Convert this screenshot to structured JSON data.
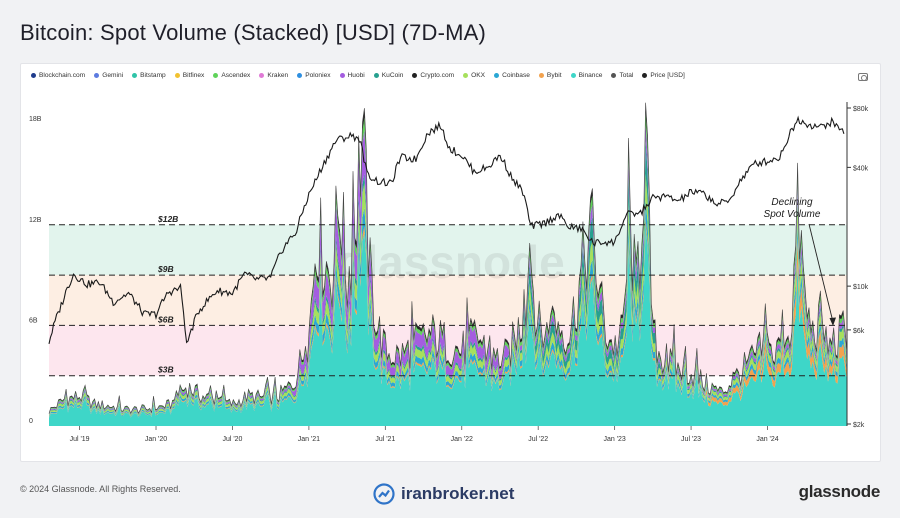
{
  "title": "Bitcoin: Spot Volume (Stacked) [USD] (7D-MA)",
  "footer": {
    "copyright": "© 2024 Glassnode. All Rights Reserved.",
    "site": "iranbroker.net",
    "brand": "glassnode"
  },
  "chart_data": {
    "type": "area",
    "watermark": "glassnode",
    "legend": [
      {
        "name": "Blockchain.com",
        "color": "#1f3b8c"
      },
      {
        "name": "Gemini",
        "color": "#5c7be0"
      },
      {
        "name": "Bitstamp",
        "color": "#2fc4a8"
      },
      {
        "name": "Bitfinex",
        "color": "#f2c230"
      },
      {
        "name": "Ascendex",
        "color": "#5fd35a"
      },
      {
        "name": "Kraken",
        "color": "#e07ad6"
      },
      {
        "name": "Poloniex",
        "color": "#2e8fe0"
      },
      {
        "name": "Huobi",
        "color": "#a45de0"
      },
      {
        "name": "KuCoin",
        "color": "#27a08f"
      },
      {
        "name": "Crypto.com",
        "color": "#222222"
      },
      {
        "name": "OKX",
        "color": "#a6e05c"
      },
      {
        "name": "Coinbase",
        "color": "#2aa7d4"
      },
      {
        "name": "Bybit",
        "color": "#f2a24e"
      },
      {
        "name": "Binance",
        "color": "#3ed6c8"
      },
      {
        "name": "Total",
        "color": "#555555"
      },
      {
        "name": "Price [USD]",
        "color": "#222222"
      }
    ],
    "x_ticks": [
      "Jul '19",
      "Jan '20",
      "Jul '20",
      "Jan '21",
      "Jul '21",
      "Jan '22",
      "Jul '22",
      "Jan '23",
      "Jul '23",
      "Jan '24"
    ],
    "y_left": {
      "ticks": [
        "0",
        "6B",
        "12B",
        "18B"
      ],
      "values": [
        0,
        6,
        12,
        18
      ],
      "unit": "B"
    },
    "y_right": {
      "ticks": [
        "$2k",
        "$6k",
        "$10k",
        "$40k",
        "$80k"
      ],
      "values": [
        2,
        6,
        10,
        40,
        80
      ],
      "scale": "log"
    },
    "bands": [
      {
        "from": 9,
        "to": 12,
        "color": "#e2f4ed"
      },
      {
        "from": 6,
        "to": 9,
        "color": "#fdeee3"
      },
      {
        "from": 3,
        "to": 6,
        "color": "#fde6ee"
      }
    ],
    "levels": [
      {
        "value": 12,
        "label": "$12B"
      },
      {
        "value": 9,
        "label": "$9B"
      },
      {
        "value": 6,
        "label": "$6B"
      },
      {
        "value": 3,
        "label": "$3B"
      }
    ],
    "annotation": {
      "lines": [
        "Declining",
        "Spot Volume"
      ]
    },
    "price": [
      [
        2019.3,
        5.2
      ],
      [
        2019.38,
        8.0
      ],
      [
        2019.46,
        11.5
      ],
      [
        2019.55,
        10.2
      ],
      [
        2019.63,
        10.5
      ],
      [
        2019.72,
        8.3
      ],
      [
        2019.82,
        9.2
      ],
      [
        2019.92,
        7.2
      ],
      [
        2020.0,
        7.2
      ],
      [
        2020.08,
        9.3
      ],
      [
        2020.16,
        9.8
      ],
      [
        2020.2,
        5.0
      ],
      [
        2020.28,
        7.5
      ],
      [
        2020.4,
        9.5
      ],
      [
        2020.5,
        9.2
      ],
      [
        2020.58,
        11.5
      ],
      [
        2020.66,
        10.8
      ],
      [
        2020.75,
        11.0
      ],
      [
        2020.83,
        15.5
      ],
      [
        2020.92,
        19.0
      ],
      [
        2021.0,
        29.0
      ],
      [
        2021.05,
        35.0
      ],
      [
        2021.12,
        45.0
      ],
      [
        2021.18,
        55.0
      ],
      [
        2021.28,
        58.0
      ],
      [
        2021.33,
        56.0
      ],
      [
        2021.38,
        37.0
      ],
      [
        2021.45,
        34.0
      ],
      [
        2021.54,
        33.0
      ],
      [
        2021.6,
        45.0
      ],
      [
        2021.7,
        44.0
      ],
      [
        2021.78,
        60.0
      ],
      [
        2021.86,
        65.0
      ],
      [
        2021.92,
        50.0
      ],
      [
        2022.0,
        46.0
      ],
      [
        2022.08,
        38.0
      ],
      [
        2022.17,
        40.0
      ],
      [
        2022.25,
        46.0
      ],
      [
        2022.33,
        35.0
      ],
      [
        2022.4,
        30.0
      ],
      [
        2022.45,
        20.0
      ],
      [
        2022.55,
        21.0
      ],
      [
        2022.63,
        23.0
      ],
      [
        2022.7,
        20.0
      ],
      [
        2022.78,
        19.5
      ],
      [
        2022.86,
        16.5
      ],
      [
        2022.95,
        16.8
      ],
      [
        2023.0,
        16.6
      ],
      [
        2023.08,
        23.0
      ],
      [
        2023.17,
        23.5
      ],
      [
        2023.25,
        28.0
      ],
      [
        2023.33,
        28.5
      ],
      [
        2023.42,
        27.0
      ],
      [
        2023.5,
        30.0
      ],
      [
        2023.58,
        29.5
      ],
      [
        2023.67,
        26.0
      ],
      [
        2023.75,
        27.0
      ],
      [
        2023.83,
        35.0
      ],
      [
        2023.92,
        42.0
      ],
      [
        2024.0,
        43.0
      ],
      [
        2024.08,
        45.0
      ],
      [
        2024.16,
        62.0
      ],
      [
        2024.2,
        70.0
      ],
      [
        2024.27,
        66.0
      ],
      [
        2024.35,
        64.0
      ],
      [
        2024.42,
        68.0
      ],
      [
        2024.48,
        62.0
      ],
      [
        2024.5,
        61.0
      ]
    ],
    "total_volume": [
      [
        2019.3,
        0.9
      ],
      [
        2019.4,
        1.6
      ],
      [
        2019.5,
        1.8
      ],
      [
        2019.6,
        1.3
      ],
      [
        2019.7,
        1.2
      ],
      [
        2019.8,
        1.0
      ],
      [
        2019.9,
        1.0
      ],
      [
        2020.0,
        1.1
      ],
      [
        2020.1,
        1.3
      ],
      [
        2020.2,
        2.4
      ],
      [
        2020.3,
        1.8
      ],
      [
        2020.4,
        1.6
      ],
      [
        2020.5,
        1.3
      ],
      [
        2020.6,
        1.8
      ],
      [
        2020.7,
        1.7
      ],
      [
        2020.8,
        1.8
      ],
      [
        2020.9,
        2.6
      ],
      [
        2021.0,
        5.5
      ],
      [
        2021.05,
        12.0
      ],
      [
        2021.1,
        10.0
      ],
      [
        2021.15,
        9.0
      ],
      [
        2021.2,
        14.0
      ],
      [
        2021.25,
        8.5
      ],
      [
        2021.3,
        12.0
      ],
      [
        2021.35,
        18.0
      ],
      [
        2021.4,
        9.0
      ],
      [
        2021.45,
        6.0
      ],
      [
        2021.5,
        4.5
      ],
      [
        2021.6,
        4.2
      ],
      [
        2021.7,
        5.0
      ],
      [
        2021.8,
        5.5
      ],
      [
        2021.9,
        5.0
      ],
      [
        2022.0,
        4.5
      ],
      [
        2022.1,
        5.5
      ],
      [
        2022.2,
        4.0
      ],
      [
        2022.3,
        4.2
      ],
      [
        2022.4,
        6.5
      ],
      [
        2022.45,
        10.0
      ],
      [
        2022.5,
        6.0
      ],
      [
        2022.55,
        5.5
      ],
      [
        2022.6,
        6.5
      ],
      [
        2022.65,
        6.0
      ],
      [
        2022.7,
        5.5
      ],
      [
        2022.75,
        7.5
      ],
      [
        2022.8,
        10.0
      ],
      [
        2022.85,
        12.0
      ],
      [
        2022.9,
        8.0
      ],
      [
        2022.95,
        5.5
      ],
      [
        2023.0,
        4.8
      ],
      [
        2023.05,
        5.5
      ],
      [
        2023.1,
        12.0
      ],
      [
        2023.15,
        7.0
      ],
      [
        2023.2,
        18.0
      ],
      [
        2023.25,
        5.5
      ],
      [
        2023.3,
        4.2
      ],
      [
        2023.4,
        3.5
      ],
      [
        2023.5,
        3.2
      ],
      [
        2023.6,
        2.5
      ],
      [
        2023.7,
        2.0
      ],
      [
        2023.8,
        3.0
      ],
      [
        2023.9,
        4.0
      ],
      [
        2024.0,
        5.0
      ],
      [
        2024.05,
        4.0
      ],
      [
        2024.1,
        6.0
      ],
      [
        2024.15,
        5.5
      ],
      [
        2024.2,
        13.0
      ],
      [
        2024.25,
        7.0
      ],
      [
        2024.3,
        5.5
      ],
      [
        2024.35,
        6.5
      ],
      [
        2024.4,
        4.5
      ],
      [
        2024.45,
        5.0
      ],
      [
        2024.5,
        5.8
      ]
    ]
  }
}
